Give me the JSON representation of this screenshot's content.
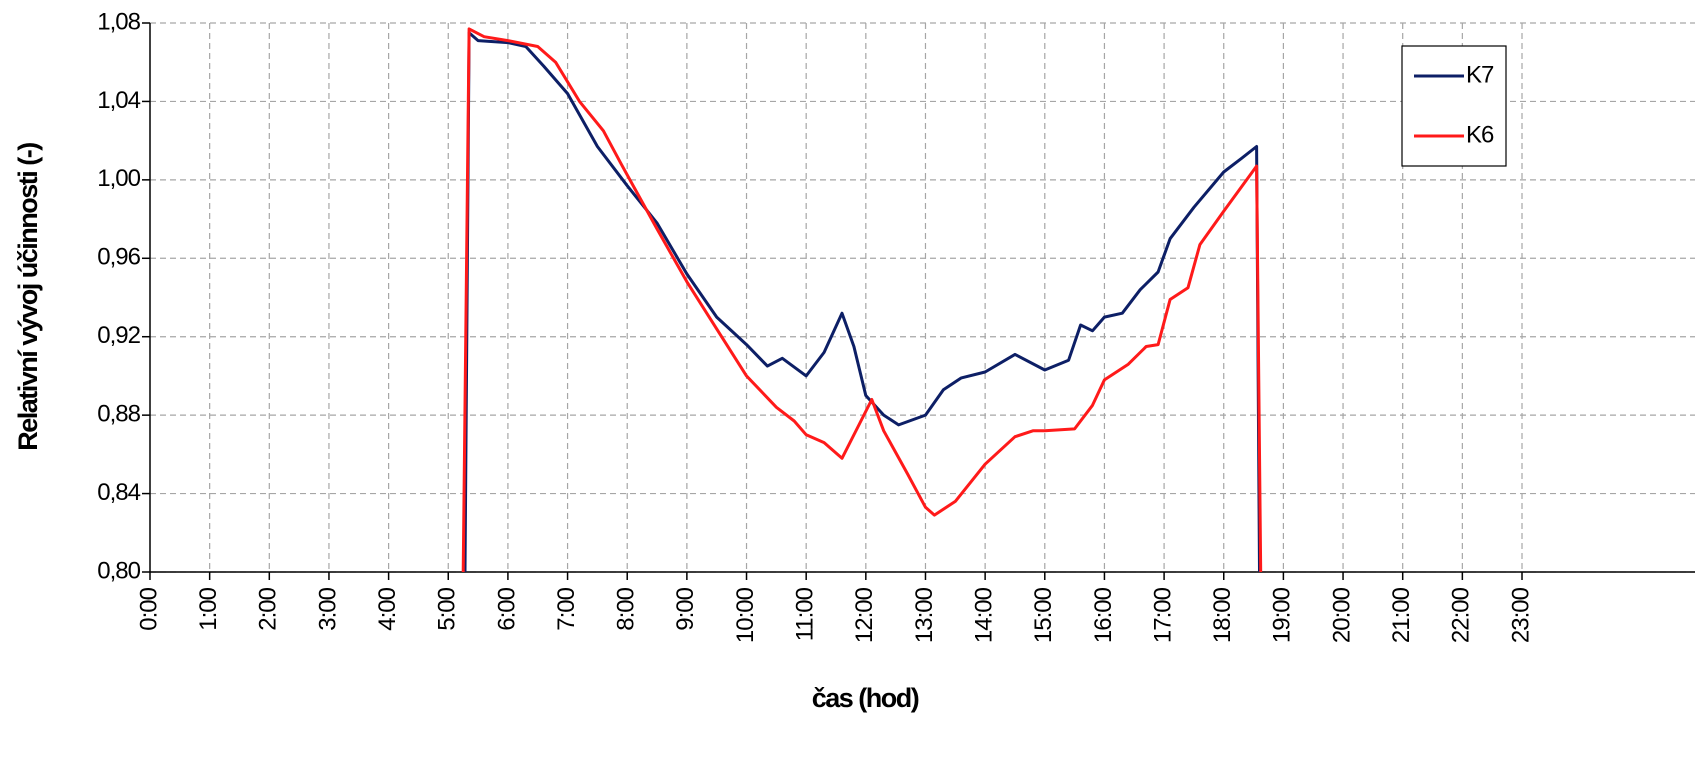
{
  "chart_data": {
    "type": "line",
    "xlabel": "čas (hod)",
    "ylabel": "Relativní vývoj účinnosti  (-)",
    "xlim": [
      0,
      25.9
    ],
    "ylim": [
      0.8,
      1.08
    ],
    "xticks": [
      {
        "value": 0,
        "label": "0:00"
      },
      {
        "value": 1,
        "label": "1:00"
      },
      {
        "value": 2,
        "label": "2:00"
      },
      {
        "value": 3,
        "label": "3:00"
      },
      {
        "value": 4,
        "label": "4:00"
      },
      {
        "value": 5,
        "label": "5:00"
      },
      {
        "value": 6,
        "label": "6:00"
      },
      {
        "value": 7,
        "label": "7:00"
      },
      {
        "value": 8,
        "label": "8:00"
      },
      {
        "value": 9,
        "label": "9:00"
      },
      {
        "value": 10,
        "label": "10:00"
      },
      {
        "value": 11,
        "label": "11:00"
      },
      {
        "value": 12,
        "label": "12:00"
      },
      {
        "value": 13,
        "label": "13:00"
      },
      {
        "value": 14,
        "label": "14:00"
      },
      {
        "value": 15,
        "label": "15:00"
      },
      {
        "value": 16,
        "label": "16:00"
      },
      {
        "value": 17,
        "label": "17:00"
      },
      {
        "value": 18,
        "label": "18:00"
      },
      {
        "value": 19,
        "label": "19:00"
      },
      {
        "value": 20,
        "label": "20:00"
      },
      {
        "value": 21,
        "label": "21:00"
      },
      {
        "value": 22,
        "label": "22:00"
      },
      {
        "value": 23,
        "label": "23:00"
      }
    ],
    "yticks": [
      {
        "value": 0.8,
        "label": "0,80"
      },
      {
        "value": 0.84,
        "label": "0,84"
      },
      {
        "value": 0.88,
        "label": "0,88"
      },
      {
        "value": 0.92,
        "label": "0,92"
      },
      {
        "value": 0.96,
        "label": "0,96"
      },
      {
        "value": 1.0,
        "label": "1,00"
      },
      {
        "value": 1.04,
        "label": "1,04"
      },
      {
        "value": 1.08,
        "label": "1,08"
      }
    ],
    "grid": true,
    "legend": "upper right",
    "series": [
      {
        "name": "K7",
        "color": "#0d1f66",
        "x": [
          5.28,
          5.35,
          5.5,
          6.0,
          6.3,
          6.6,
          7.0,
          7.5,
          8.0,
          8.5,
          9.0,
          9.5,
          10.0,
          10.35,
          10.6,
          11.0,
          11.3,
          11.6,
          11.8,
          12.0,
          12.3,
          12.55,
          13.0,
          13.3,
          13.6,
          14.0,
          14.5,
          15.0,
          15.4,
          15.6,
          15.8,
          16.0,
          16.3,
          16.6,
          16.9,
          17.1,
          17.5,
          18.0,
          18.3,
          18.55,
          18.6
        ],
        "values": [
          0.8,
          1.075,
          1.071,
          1.07,
          1.068,
          1.058,
          1.044,
          1.017,
          0.997,
          0.978,
          0.952,
          0.93,
          0.916,
          0.905,
          0.909,
          0.9,
          0.912,
          0.932,
          0.915,
          0.89,
          0.88,
          0.875,
          0.88,
          0.893,
          0.899,
          0.902,
          0.911,
          0.903,
          0.908,
          0.926,
          0.923,
          0.93,
          0.932,
          0.944,
          0.953,
          0.97,
          0.986,
          1.004,
          1.011,
          1.017,
          0.8
        ]
      },
      {
        "name": "K6",
        "color": "#ff1a1a",
        "x": [
          5.25,
          5.35,
          5.6,
          6.0,
          6.5,
          6.8,
          7.2,
          7.6,
          7.9,
          8.5,
          9.0,
          9.5,
          10.0,
          10.5,
          10.8,
          11.0,
          11.3,
          11.6,
          11.9,
          12.1,
          12.3,
          12.7,
          13.0,
          13.15,
          13.5,
          14.0,
          14.5,
          14.8,
          15.0,
          15.5,
          15.8,
          16.0,
          16.4,
          16.7,
          16.9,
          17.1,
          17.4,
          17.6,
          18.0,
          18.55,
          18.62
        ],
        "values": [
          0.8,
          1.077,
          1.073,
          1.071,
          1.068,
          1.06,
          1.04,
          1.025,
          1.008,
          0.975,
          0.948,
          0.924,
          0.9,
          0.884,
          0.877,
          0.87,
          0.866,
          0.858,
          0.876,
          0.888,
          0.872,
          0.85,
          0.833,
          0.829,
          0.836,
          0.855,
          0.869,
          0.872,
          0.872,
          0.873,
          0.885,
          0.898,
          0.906,
          0.915,
          0.916,
          0.939,
          0.945,
          0.967,
          0.984,
          1.007,
          0.8
        ]
      }
    ]
  }
}
